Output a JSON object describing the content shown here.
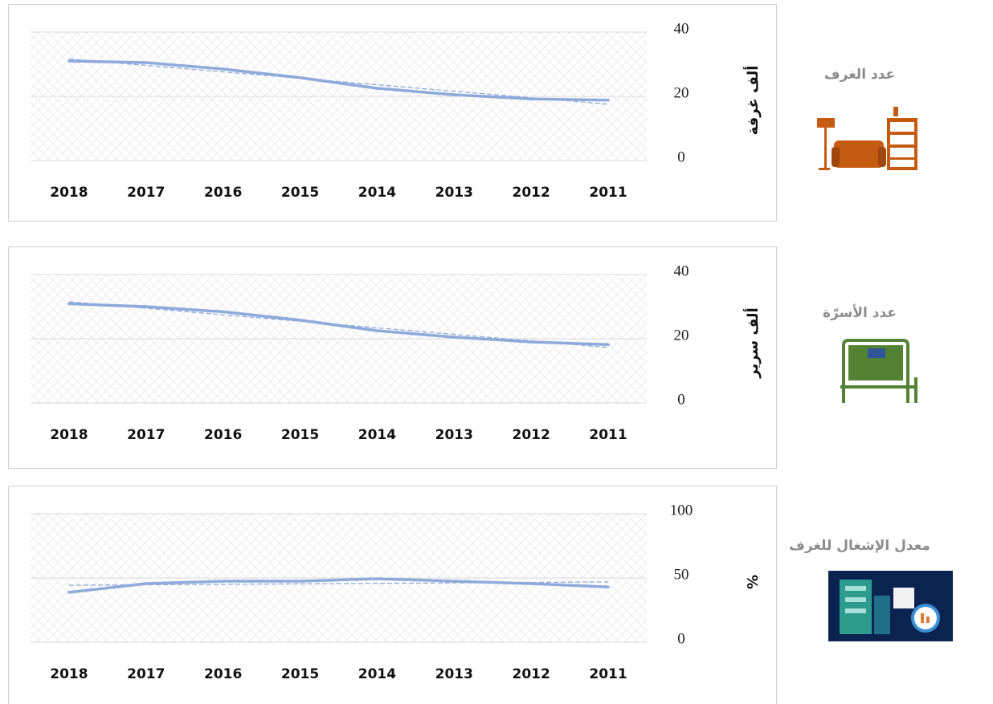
{
  "chart_data": [
    {
      "type": "line",
      "title": "عدد الغرف",
      "y_label": "ألف غرفة",
      "categories": [
        "2018",
        "2017",
        "2016",
        "2015",
        "2014",
        "2013",
        "2012",
        "2011"
      ],
      "values": [
        31,
        30.5,
        28.5,
        25.8,
        22.5,
        20.5,
        19.2,
        18.8
      ],
      "color": "#8eaadb",
      "ylim": [
        0,
        40
      ],
      "yticks": [
        0,
        20,
        40
      ],
      "grid": true,
      "trendline": true
    },
    {
      "type": "line",
      "title": "عدد الأسرّة",
      "y_label": "ألف سرير",
      "categories": [
        "2018",
        "2017",
        "2016",
        "2015",
        "2014",
        "2013",
        "2012",
        "2011"
      ],
      "values": [
        30.9,
        30,
        28.4,
        25.8,
        22.5,
        20.5,
        19,
        18.2
      ],
      "color": "#8eaadb",
      "ylim": [
        0,
        40
      ],
      "yticks": [
        0,
        20,
        40
      ],
      "grid": true,
      "trendline": true
    },
    {
      "type": "line",
      "title": "معدل الإشغال للغرف",
      "y_label": "%",
      "categories": [
        "2018",
        "2017",
        "2016",
        "2015",
        "2014",
        "2013",
        "2012",
        "2011"
      ],
      "values": [
        38.8,
        45.6,
        47.5,
        47.5,
        49.4,
        47.5,
        45.6,
        43
      ],
      "color": "#8eaadb",
      "ylim": [
        0,
        100
      ],
      "yticks": [
        0,
        50,
        100
      ],
      "grid": true,
      "trendline": true
    }
  ]
}
